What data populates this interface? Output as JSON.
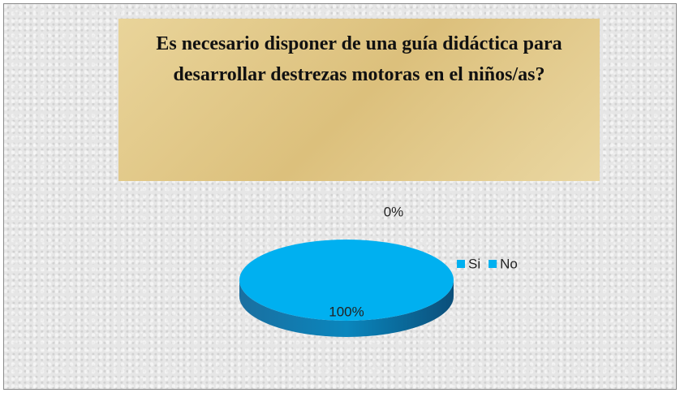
{
  "chart_data": {
    "type": "pie",
    "title": "Es necesario disponer de una guía didáctica para desarrollar  destrezas motoras en el niños/as?",
    "categories": [
      "Si",
      "No"
    ],
    "values": [
      100,
      0
    ],
    "value_labels": [
      "100%",
      "0%"
    ],
    "colors": [
      "#00b0f0",
      "#00b0f0"
    ],
    "legend": "right"
  }
}
